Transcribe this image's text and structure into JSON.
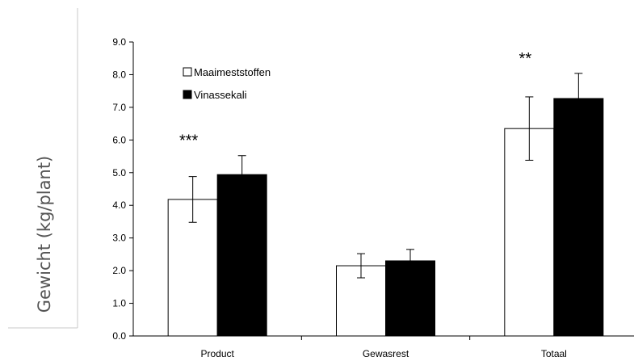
{
  "chart_data": {
    "type": "bar",
    "title": "",
    "xlabel": "",
    "ylabel": "Gewicht (kg/plant)",
    "ylim": [
      0,
      9
    ],
    "yticks": [
      0,
      1,
      2,
      3,
      4,
      5,
      6,
      7,
      8,
      9
    ],
    "ytick_labels": [
      "0.0",
      "1.0",
      "2.0",
      "3.0",
      "4.0",
      "5.0",
      "6.0",
      "7.0",
      "8.0",
      "9.0"
    ],
    "categories": [
      "Product",
      "Gewasrest",
      "Totaal"
    ],
    "series": [
      {
        "name": "Maaimeststoffen",
        "values": [
          4.18,
          2.15,
          6.35
        ],
        "errors": [
          0.7,
          0.37,
          0.97
        ],
        "color": "#ffffff"
      },
      {
        "name": "Vinassekali",
        "values": [
          4.94,
          2.3,
          7.27
        ],
        "errors": [
          0.58,
          0.35,
          0.77
        ],
        "color": "#000000"
      }
    ],
    "annotations": [
      "***",
      "",
      "**"
    ],
    "legend_position": "top-left",
    "grid": false
  }
}
